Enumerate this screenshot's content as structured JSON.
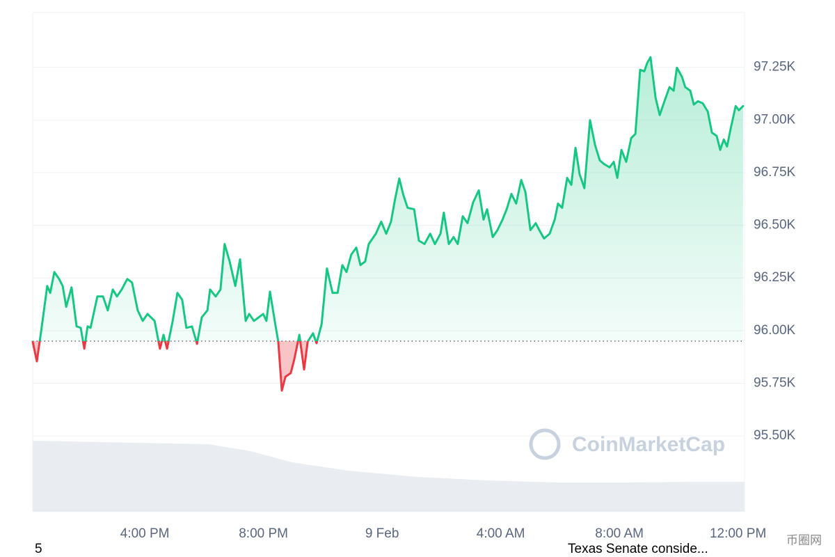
{
  "chart_data": {
    "type": "line",
    "watermark": "CoinMarketCap",
    "footer_left": "5",
    "footer_ticker": "Texas Senate conside...",
    "site_watermark": "币圈网",
    "baseline": 95950,
    "up_color": "#16c784",
    "down_color": "#ea3943",
    "x": [
      12.22,
      12.36,
      12.52,
      12.71,
      12.81,
      12.95,
      13.11,
      13.23,
      13.35,
      13.53,
      13.7,
      13.84,
      13.96,
      14.07,
      14.17,
      14.4,
      14.59,
      14.75,
      14.92,
      15.06,
      15.22,
      15.41,
      15.57,
      15.76,
      15.93,
      16.09,
      16.33,
      16.51,
      16.63,
      16.75,
      16.94,
      17.1,
      17.26,
      17.4,
      17.59,
      17.76,
      17.92,
      18.11,
      18.2,
      18.39,
      18.55,
      18.69,
      18.86,
      19.05,
      19.21,
      19.4,
      19.52,
      19.68,
      19.84,
      19.99,
      20.1,
      20.22,
      20.38,
      20.5,
      20.62,
      20.74,
      20.92,
      21.04,
      21.21,
      21.37,
      21.49,
      21.67,
      21.79,
      21.96,
      22.14,
      22.33,
      22.5,
      22.66,
      22.8,
      22.96,
      23.13,
      23.27,
      23.43,
      23.55,
      23.79,
      23.97,
      24.14,
      24.3,
      24.44,
      24.58,
      24.72,
      24.86,
      25.08,
      25.24,
      25.43,
      25.62,
      25.78,
      25.97,
      26.08,
      26.25,
      26.41,
      26.55,
      26.72,
      26.88,
      27.07,
      27.26,
      27.42,
      27.54,
      27.73,
      27.89,
      28.06,
      28.2,
      28.36,
      28.52,
      28.69,
      28.83,
      29.0,
      29.18,
      29.3,
      29.46,
      29.65,
      29.82,
      29.93,
      30.07,
      30.24,
      30.38,
      30.52,
      30.66,
      30.82,
      31.01,
      31.18,
      31.34,
      31.48,
      31.67,
      31.81,
      31.93,
      32.07,
      32.23,
      32.4,
      32.54,
      32.7,
      32.84,
      32.94,
      33.05,
      33.22,
      33.36,
      33.52,
      33.69,
      33.83,
      33.94,
      34.11,
      34.22,
      34.39,
      34.51,
      34.65,
      34.81,
      34.98,
      35.12,
      35.28,
      35.4,
      35.52,
      35.63,
      35.75,
      35.92,
      36.03,
      36.17
    ],
    "series": [
      {
        "name": "Price",
        "color": "#16c784",
        "values": [
          95947,
          95854,
          96013,
          96212,
          96179,
          96278,
          96245,
          96212,
          96113,
          96205,
          96020,
          96013,
          95914,
          96020,
          96013,
          96162,
          96162,
          96096,
          96195,
          96162,
          96195,
          96245,
          96228,
          96096,
          96046,
          96079,
          96046,
          95914,
          95980,
          95914,
          96046,
          96179,
          96146,
          96013,
          96020,
          95937,
          96063,
          96096,
          96195,
          96162,
          96195,
          96411,
          96328,
          96212,
          96338,
          96046,
          96079,
          96046,
          96063,
          96079,
          96046,
          96185,
          96046,
          95947,
          95715,
          95781,
          95798,
          95864,
          95980,
          95815,
          95947,
          95987,
          95940,
          96030,
          96295,
          96179,
          96179,
          96311,
          96278,
          96361,
          96394,
          96311,
          96328,
          96411,
          96460,
          96517,
          96460,
          96517,
          96626,
          96722,
          96642,
          96583,
          96576,
          96427,
          96411,
          96460,
          96411,
          96460,
          96560,
          96411,
          96444,
          96411,
          96543,
          96510,
          96609,
          96666,
          96527,
          96576,
          96444,
          96477,
          96527,
          96576,
          96649,
          96603,
          96715,
          96659,
          96477,
          96510,
          96477,
          96437,
          96460,
          96527,
          96603,
          96583,
          96725,
          96692,
          96868,
          96742,
          96676,
          96999,
          96881,
          96808,
          96791,
          96775,
          96801,
          96725,
          96858,
          96801,
          96914,
          96934,
          97238,
          97231,
          97271,
          97298,
          97106,
          97023,
          97089,
          97156,
          97139,
          97248,
          97205,
          97156,
          97139,
          97073,
          97089,
          97079,
          97040,
          96940,
          96924,
          96858,
          96907,
          96874,
          96957,
          97066,
          97046,
          97066
        ]
      }
    ],
    "xlim": [
      12.22,
      36.22
    ],
    "xticks": [
      {
        "value": 16,
        "label": "4:00 PM"
      },
      {
        "value": 20,
        "label": "8:00 PM"
      },
      {
        "value": 24,
        "label": "9 Feb"
      },
      {
        "value": 28,
        "label": "4:00 AM"
      },
      {
        "value": 32,
        "label": "8:00 AM"
      },
      {
        "value": 36,
        "label": "12:00 PM"
      }
    ],
    "ylim": [
      95140,
      97510
    ],
    "yticks": [
      {
        "value": 95500,
        "label": "95.50K"
      },
      {
        "value": 95750,
        "label": "95.75K"
      },
      {
        "value": 96000,
        "label": "96.00K"
      },
      {
        "value": 96250,
        "label": "96.25K"
      },
      {
        "value": 96500,
        "label": "96.50K"
      },
      {
        "value": 96750,
        "label": "96.75K"
      },
      {
        "value": 97000,
        "label": "97.00K"
      },
      {
        "value": 97250,
        "label": "97.25K"
      }
    ],
    "grid": true
  }
}
